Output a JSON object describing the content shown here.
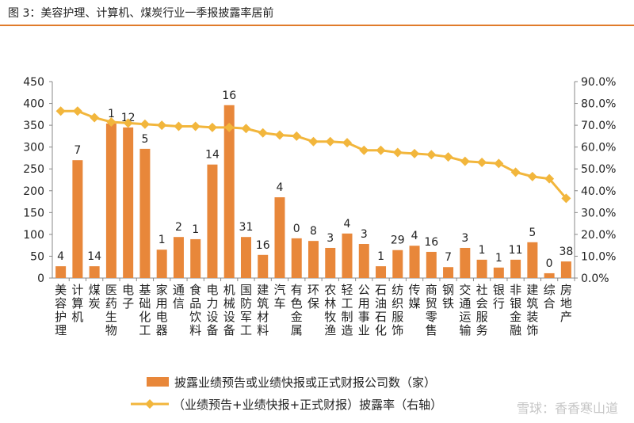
{
  "title": "图 3：美容护理、计算机、煤炭行业一季报披露率居前",
  "watermark": "雪球：香香寒山道",
  "colors": {
    "bar": "#e8873a",
    "line": "#f2b63c",
    "title_rule": "#e07b2a"
  },
  "chart_data": {
    "type": "bar+line",
    "categories": [
      "美容护理",
      "计算机",
      "煤炭",
      "医药生物",
      "电子",
      "基础化工",
      "家用电器",
      "通信",
      "食品饮料",
      "电力设备",
      "机械设备",
      "国防军工",
      "建筑材料",
      "汽车",
      "有色金属",
      "环保",
      "农林牧渔",
      "轻工制造",
      "公用事业",
      "石油石化",
      "纺织服饰",
      "传媒",
      "商贸零售",
      "钢铁",
      "交通运输",
      "社会服务",
      "银行",
      "非银金融",
      "建筑装饰",
      "综合",
      "房地产"
    ],
    "series": [
      {
        "name": "披露业绩预告或业绩快报或正式财报公司数（家）",
        "axis": "left",
        "type": "bar",
        "values": [
          27,
          270,
          27,
          354,
          345,
          296,
          65,
          94,
          89,
          260,
          396,
          94,
          53,
          185,
          91,
          85,
          69,
          102,
          78,
          27,
          64,
          74,
          60,
          25,
          69,
          42,
          24,
          42,
          82,
          11,
          38
        ],
        "data_labels": [
          "4",
          "7",
          "14",
          "1",
          "12",
          "5",
          "1",
          "2",
          "1",
          "14",
          "16",
          "31",
          "16",
          "4",
          "0",
          "8",
          "3",
          "4",
          "3",
          "1",
          "29",
          "4",
          "16",
          "7",
          "3",
          "1",
          "1",
          "11",
          "5",
          "0",
          "38"
        ]
      },
      {
        "name": "（业绩预告+业绩快报+正式财报）披露率（右轴）",
        "axis": "right",
        "type": "line",
        "values": [
          76.5,
          76.5,
          73.5,
          71.5,
          71,
          70.5,
          70,
          69.5,
          69.5,
          69,
          69,
          68.5,
          66.5,
          65.5,
          65,
          62.5,
          62.5,
          62,
          58.5,
          58.5,
          57.5,
          57,
          56.5,
          55.5,
          53.5,
          53,
          52.5,
          48.5,
          46.5,
          45.5,
          36.5
        ]
      }
    ],
    "left_axis": {
      "range": [
        0,
        450
      ],
      "ticks": [
        "0",
        "50",
        "100",
        "150",
        "200",
        "250",
        "300",
        "350",
        "400",
        "450"
      ]
    },
    "right_axis": {
      "range": [
        0,
        90
      ],
      "ticks": [
        "0.0%",
        "10.0%",
        "20.0%",
        "30.0%",
        "40.0%",
        "50.0%",
        "60.0%",
        "70.0%",
        "80.0%",
        "90.0%"
      ]
    },
    "legend_position": "bottom",
    "grid": false
  }
}
